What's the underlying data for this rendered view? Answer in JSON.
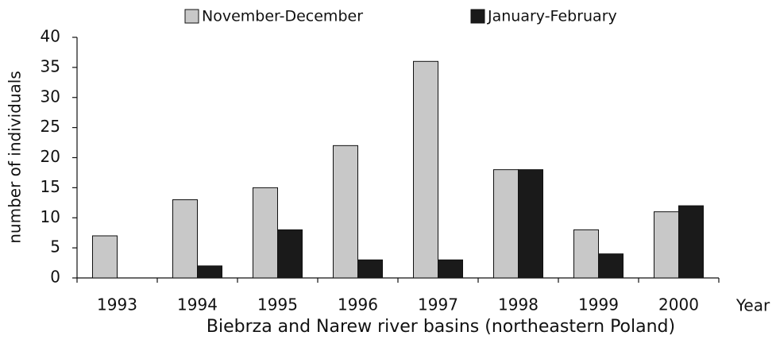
{
  "chart_data": {
    "type": "bar",
    "xlabel": "Biebrza and Narew river basins (northeastern Poland)",
    "xunit": "Year",
    "ylabel": "number of individuals",
    "categories": [
      "1993",
      "1994",
      "1995",
      "1996",
      "1997",
      "1998",
      "1999",
      "2000"
    ],
    "series": [
      {
        "name": "November-December",
        "color": "#c8c8c8",
        "values": [
          7,
          13,
          15,
          22,
          36,
          18,
          8,
          11
        ]
      },
      {
        "name": "January-February",
        "color": "#1a1a1a",
        "values": [
          0,
          2,
          8,
          3,
          3,
          18,
          4,
          12
        ]
      }
    ],
    "ylim": [
      0,
      40
    ],
    "yticks": [
      0,
      5,
      10,
      15,
      20,
      25,
      30,
      35,
      40
    ],
    "grid": false,
    "legend": "top"
  }
}
